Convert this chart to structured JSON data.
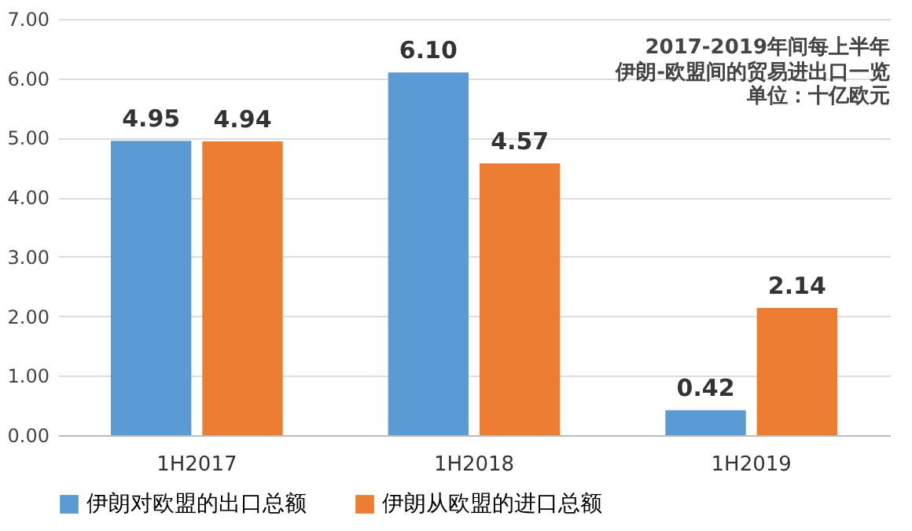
{
  "chart_data": {
    "type": "bar",
    "title": "2017-2019年间每上半年",
    "subtitle": "伊朗-欧盟间的贸易进出口一览",
    "annotations": [
      "单位：十亿欧元"
    ],
    "categories": [
      "1H2017",
      "1H2018",
      "1H2019"
    ],
    "series": [
      {
        "name": "伊朗对欧盟的出口总额",
        "color": "#5b9bd5",
        "values": [
          4.95,
          6.1,
          0.42
        ],
        "value_labels": [
          "4.95",
          "6.10",
          "0.42"
        ]
      },
      {
        "name": "伊朗从欧盟的进口总额",
        "color": "#ed7d31",
        "values": [
          4.94,
          4.57,
          2.14
        ],
        "value_labels": [
          "4.94",
          "4.57",
          "2.14"
        ]
      }
    ],
    "ylim": [
      0,
      7
    ],
    "yticks": [
      {
        "value": 0,
        "label": "0.00"
      },
      {
        "value": 1,
        "label": "1.00"
      },
      {
        "value": 2,
        "label": "2.00"
      },
      {
        "value": 3,
        "label": "3.00"
      },
      {
        "value": 4,
        "label": "4.00"
      },
      {
        "value": 5,
        "label": "5.00"
      },
      {
        "value": 6,
        "label": "6.00"
      },
      {
        "value": 7,
        "label": "7.00"
      }
    ],
    "grid": "y",
    "legend": "bottom"
  }
}
